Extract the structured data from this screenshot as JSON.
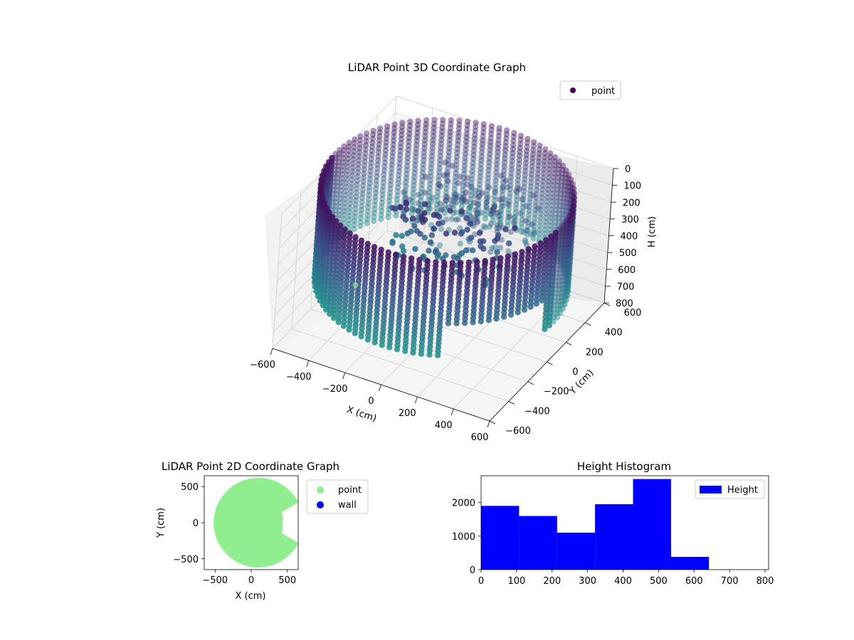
{
  "chart_data": [
    {
      "type": "scatter3d",
      "title": "LiDAR Point 3D Coordinate Graph",
      "xlabel": "X (cm)",
      "ylabel": "Y (cm)",
      "zlabel": "H (cm)",
      "xlim": [
        -600,
        600
      ],
      "ylim": [
        -600,
        600
      ],
      "zlim": [
        0,
        800
      ],
      "z_inverted": true,
      "x_ticks": [
        "−600",
        "−400",
        "−200",
        "0",
        "200",
        "400",
        "600"
      ],
      "y_ticks": [
        "−600",
        "−400",
        "−200",
        "0",
        "200",
        "400",
        "600"
      ],
      "z_ticks": [
        "0",
        "100",
        "200",
        "300",
        "400",
        "500",
        "600",
        "700",
        "800"
      ],
      "legend": {
        "position": "top-right",
        "entries": [
          {
            "name": "point",
            "color": "#440154"
          }
        ]
      },
      "colormap": "viridis",
      "shape": "cylindrical wall of points, radius about 620 cm, heights 0–800 cm, with an inner cluster of points near the centre",
      "grid": true
    },
    {
      "type": "scatter",
      "title": "LiDAR Point 2D Coordinate Graph",
      "xlabel": "X (cm)",
      "ylabel": "Y (cm)",
      "xlim": [
        -650,
        650
      ],
      "ylim": [
        -650,
        650
      ],
      "x_ticks": [
        "−500",
        "0",
        "500"
      ],
      "y_ticks": [
        "−500",
        "0",
        "500"
      ],
      "legend": {
        "position": "outside-right",
        "entries": [
          {
            "name": "point",
            "color": "#90ee90"
          },
          {
            "name": "wall",
            "color": "#0000ff"
          }
        ]
      },
      "shape": "filled disc of radius about 620 cm with a notch on the right side around y = 0"
    },
    {
      "type": "bar",
      "title": "Height Histogram",
      "xlabel": "",
      "ylabel": "",
      "xlim": [
        0,
        810
      ],
      "ylim": [
        0,
        2800
      ],
      "x_ticks": [
        "0",
        "100",
        "200",
        "300",
        "400",
        "500",
        "600",
        "700",
        "800"
      ],
      "y_ticks": [
        "0",
        "1000",
        "2000"
      ],
      "bins": [
        {
          "from": 0,
          "to": 107,
          "value": 1900
        },
        {
          "from": 107,
          "to": 214,
          "value": 1600
        },
        {
          "from": 214,
          "to": 321,
          "value": 1100
        },
        {
          "from": 321,
          "to": 428,
          "value": 1950
        },
        {
          "from": 428,
          "to": 535,
          "value": 2700
        },
        {
          "from": 535,
          "to": 642,
          "value": 380
        }
      ],
      "color": "#0000ff",
      "legend": {
        "position": "top-right",
        "entries": [
          {
            "name": "Height",
            "color": "#0000ff"
          }
        ]
      }
    }
  ]
}
